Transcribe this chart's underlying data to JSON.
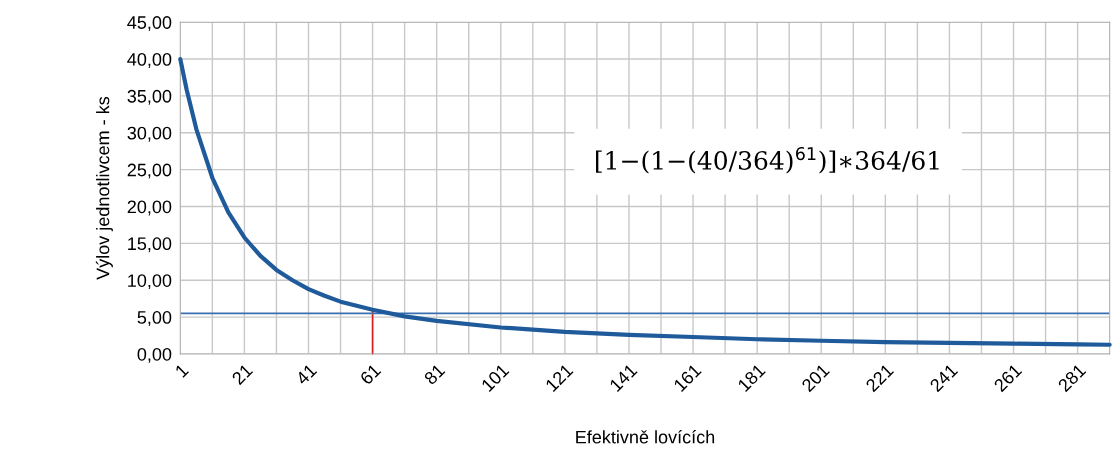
{
  "chart_data": {
    "type": "line",
    "xlabel": "Efektivně lovících",
    "ylabel": "Výlov jednotlivcem - ks",
    "x": [
      1,
      3,
      6,
      11,
      16,
      21,
      26,
      31,
      36,
      41,
      46,
      51,
      61,
      71,
      81,
      101,
      121,
      141,
      161,
      181,
      201,
      221,
      241,
      261,
      281,
      291
    ],
    "series": [
      {
        "color": "#1f5a9a",
        "values": [
          40.0,
          35.8,
          30.5,
          23.9,
          19.2,
          15.8,
          13.3,
          11.4,
          10.0,
          8.8,
          7.9,
          7.1,
          6.0,
          5.1,
          4.5,
          3.6,
          3.0,
          2.6,
          2.3,
          2.0,
          1.8,
          1.6,
          1.5,
          1.4,
          1.3,
          1.25
        ]
      },
      {
        "color": "#d62020",
        "x": [
          61,
          61
        ],
        "values": [
          0,
          6.0
        ]
      }
    ],
    "ref_lines": [
      {
        "axis": "y",
        "value": 5.5,
        "color": "#3a6fb0"
      }
    ],
    "annotations": [
      "[1−(1−(40/364)$^{61}$)]∗364/61"
    ],
    "xlim": [
      1,
      291
    ],
    "xticks": [
      1,
      {
        "value": 11,
        "label": null
      },
      21,
      {
        "value": 31,
        "label": null
      },
      41,
      {
        "value": 51,
        "label": null
      },
      61,
      {
        "value": 71,
        "label": null
      },
      81,
      {
        "value": 91,
        "label": null
      },
      101,
      {
        "value": 111,
        "label": null
      },
      121,
      {
        "value": 131,
        "label": null
      },
      141,
      {
        "value": 151,
        "label": null
      },
      161,
      {
        "value": 171,
        "label": null
      },
      181,
      {
        "value": 191,
        "label": null
      },
      201,
      {
        "value": 211,
        "label": null
      },
      221,
      {
        "value": 231,
        "label": null
      },
      241,
      {
        "value": 251,
        "label": null
      },
      261,
      {
        "value": 271,
        "label": null
      },
      281
    ],
    "ylim": [
      0,
      45
    ],
    "yticks": [
      {
        "value": 0,
        "label": "0,00"
      },
      {
        "value": 5,
        "label": "5,00"
      },
      {
        "value": 10,
        "label": "10,00"
      },
      {
        "value": 15,
        "label": "15,00"
      },
      {
        "value": 20,
        "label": "20,00"
      },
      {
        "value": 25,
        "label": "25,00"
      },
      {
        "value": 30,
        "label": "30,00"
      },
      {
        "value": 35,
        "label": "35,00"
      },
      {
        "value": 40,
        "label": "40,00"
      },
      {
        "value": 45,
        "label": "45,00"
      }
    ],
    "grid": true,
    "marker": "none",
    "line_style": "solid",
    "legend": false
  }
}
